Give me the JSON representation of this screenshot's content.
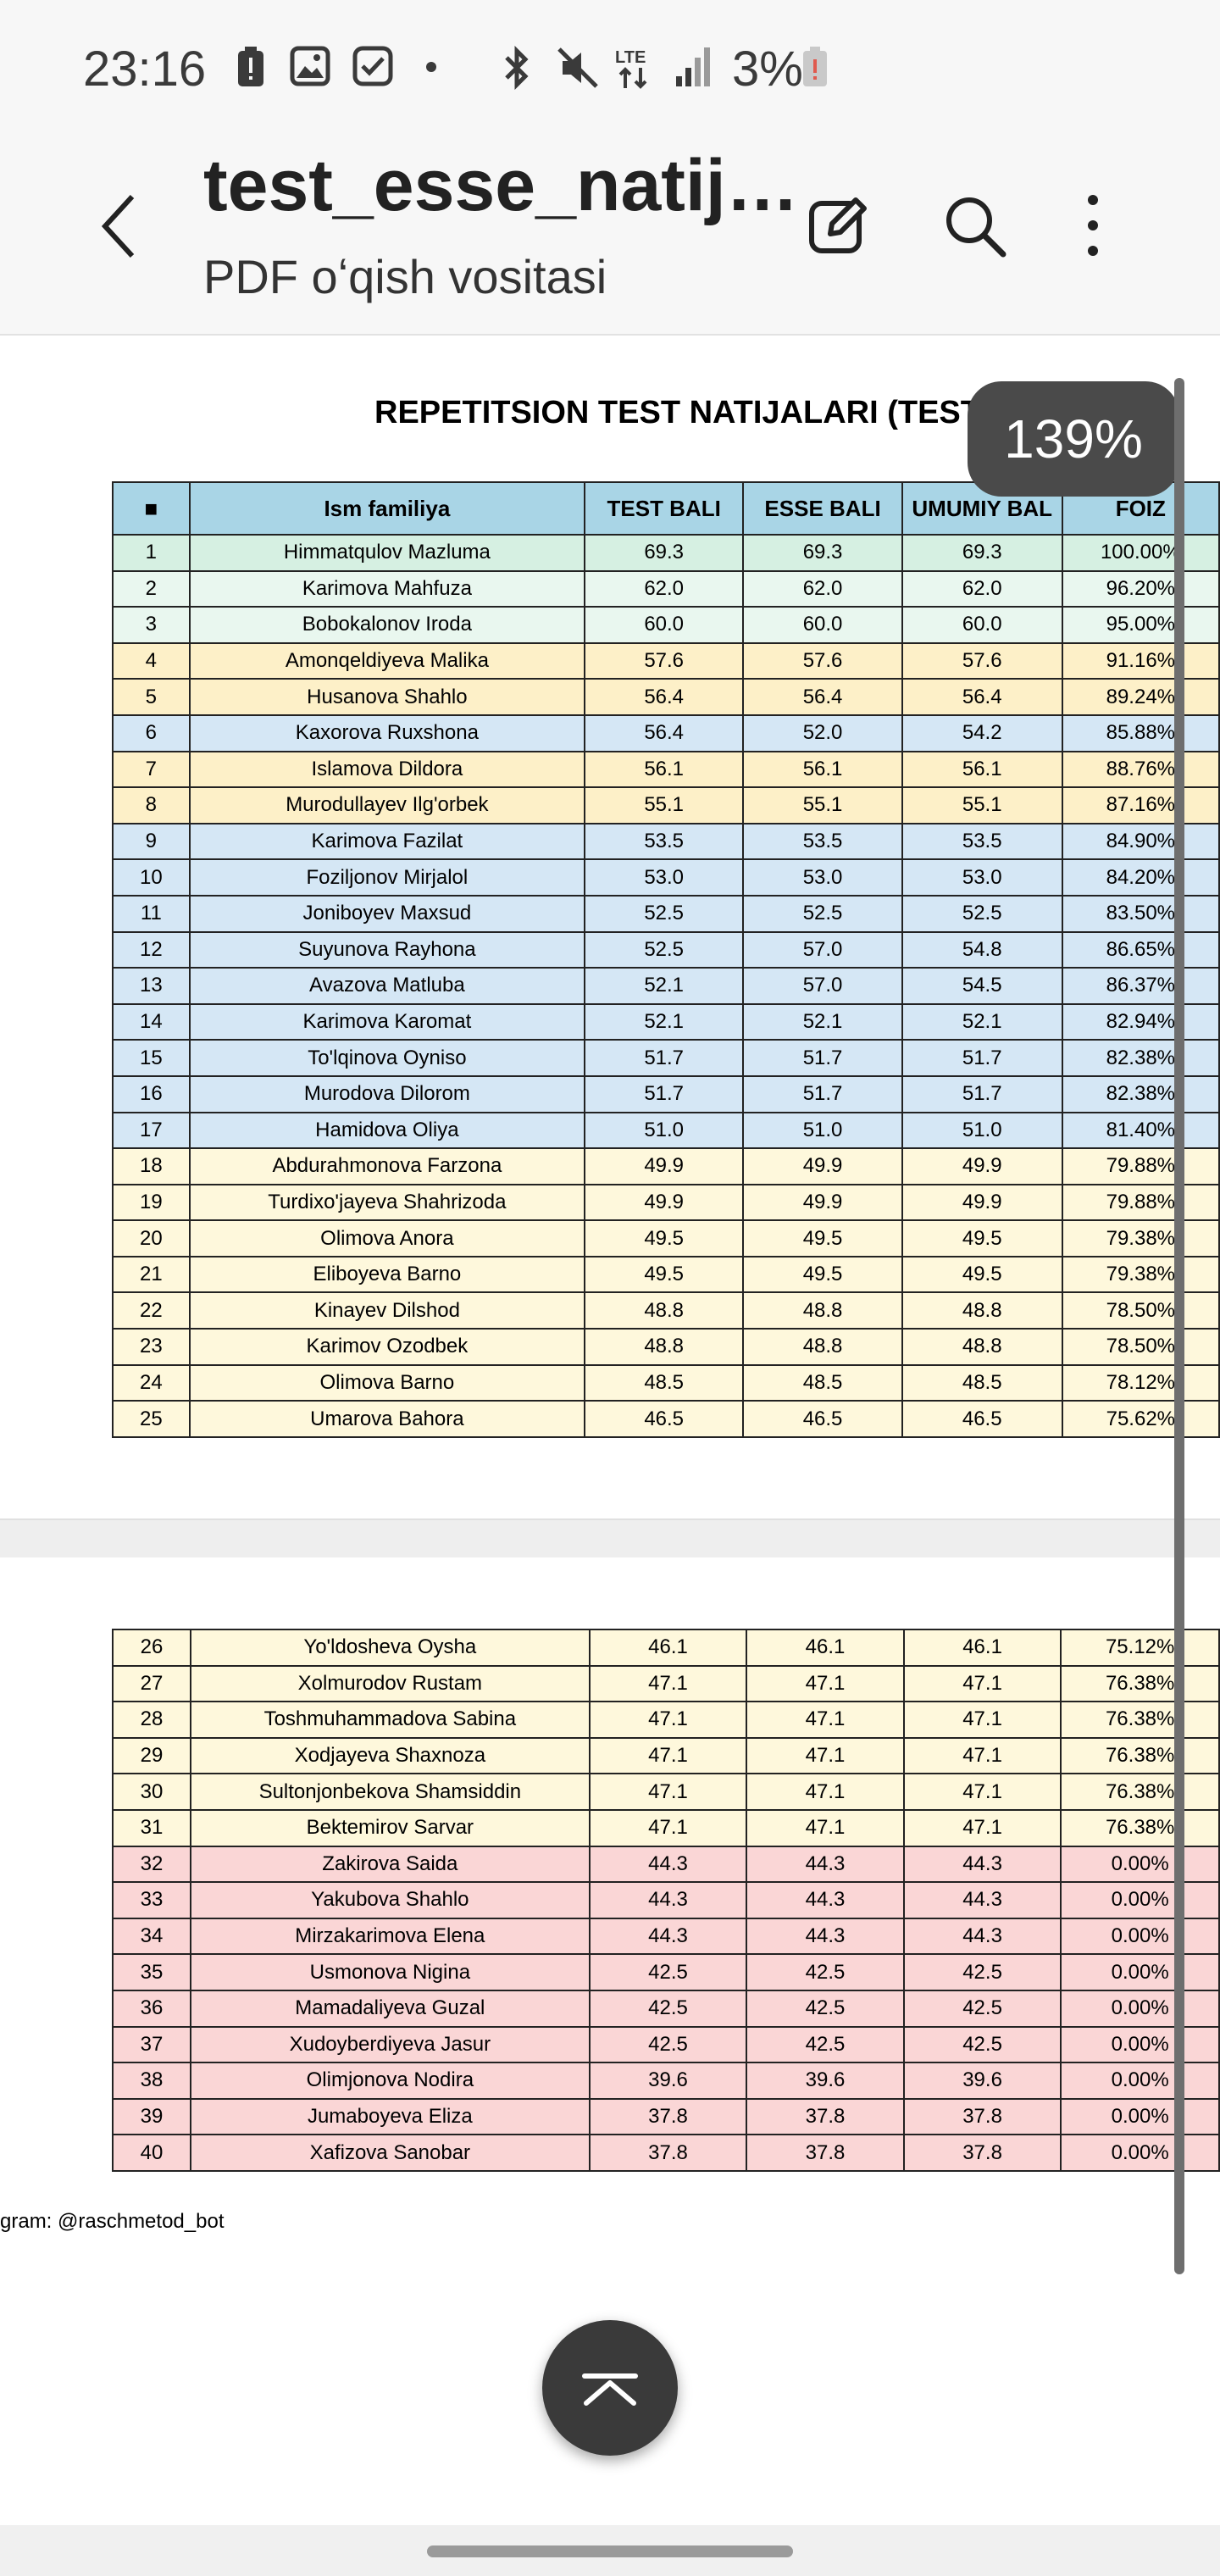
{
  "status_bar": {
    "time": "23:16",
    "battery_percent": "3%",
    "icons": [
      "battery-alert-icon",
      "gallery-icon",
      "checkbox-icon",
      "dot-icon",
      "bluetooth-icon",
      "mute-icon",
      "lte-icon",
      "signal-icon",
      "battery-icon"
    ],
    "network_label": "LTE"
  },
  "app_bar": {
    "title": "test_esse_natij…",
    "subtitle": "PDF oʻqish vositasi",
    "icons": [
      "back-icon",
      "edit-icon",
      "search-icon",
      "more-icon"
    ]
  },
  "zoom_level": "139%",
  "document": {
    "title": "REPETITSION TEST NATIJALARI (TEST+ESSE)",
    "columns": [
      "■",
      "Ism familiya",
      "TEST BALI",
      "ESSE BALI",
      "UMUMIY BAL",
      "FOIZ"
    ],
    "page1_rows": [
      {
        "n": "1",
        "name": "Himmatqulov Mazluma",
        "test": "69.3",
        "esse": "69.3",
        "umumiy": "69.3",
        "foiz": "100.00%",
        "color": "green"
      },
      {
        "n": "2",
        "name": "Karimova Mahfuza",
        "test": "62.0",
        "esse": "62.0",
        "umumiy": "62.0",
        "foiz": "96.20%",
        "color": "mint"
      },
      {
        "n": "3",
        "name": "Bobokalonov Iroda",
        "test": "60.0",
        "esse": "60.0",
        "umumiy": "60.0",
        "foiz": "95.00%",
        "color": "mint"
      },
      {
        "n": "4",
        "name": "Amonqeldiyeva Malika",
        "test": "57.6",
        "esse": "57.6",
        "umumiy": "57.6",
        "foiz": "91.16%",
        "color": "yellow"
      },
      {
        "n": "5",
        "name": "Husanova Shahlo",
        "test": "56.4",
        "esse": "56.4",
        "umumiy": "56.4",
        "foiz": "89.24%",
        "color": "yellow"
      },
      {
        "n": "6",
        "name": "Kaxorova Ruxshona",
        "test": "56.4",
        "esse": "52.0",
        "umumiy": "54.2",
        "foiz": "85.88%",
        "color": "blue"
      },
      {
        "n": "7",
        "name": "Islamova Dildora",
        "test": "56.1",
        "esse": "56.1",
        "umumiy": "56.1",
        "foiz": "88.76%",
        "color": "yellow"
      },
      {
        "n": "8",
        "name": "Murodullayev Ilg'orbek",
        "test": "55.1",
        "esse": "55.1",
        "umumiy": "55.1",
        "foiz": "87.16%",
        "color": "yellow"
      },
      {
        "n": "9",
        "name": "Karimova Fazilat",
        "test": "53.5",
        "esse": "53.5",
        "umumiy": "53.5",
        "foiz": "84.90%",
        "color": "blue"
      },
      {
        "n": "10",
        "name": "Foziljonov Mirjalol",
        "test": "53.0",
        "esse": "53.0",
        "umumiy": "53.0",
        "foiz": "84.20%",
        "color": "blue"
      },
      {
        "n": "11",
        "name": "Joniboyev Maxsud",
        "test": "52.5",
        "esse": "52.5",
        "umumiy": "52.5",
        "foiz": "83.50%",
        "color": "blue"
      },
      {
        "n": "12",
        "name": "Suyunova Rayhona",
        "test": "52.5",
        "esse": "57.0",
        "umumiy": "54.8",
        "foiz": "86.65%",
        "color": "blue"
      },
      {
        "n": "13",
        "name": "Avazova Matluba",
        "test": "52.1",
        "esse": "57.0",
        "umumiy": "54.5",
        "foiz": "86.37%",
        "color": "blue"
      },
      {
        "n": "14",
        "name": "Karimova Karomat",
        "test": "52.1",
        "esse": "52.1",
        "umumiy": "52.1",
        "foiz": "82.94%",
        "color": "blue"
      },
      {
        "n": "15",
        "name": "To'lqinova Oyniso",
        "test": "51.7",
        "esse": "51.7",
        "umumiy": "51.7",
        "foiz": "82.38%",
        "color": "blue"
      },
      {
        "n": "16",
        "name": "Murodova Dilorom",
        "test": "51.7",
        "esse": "51.7",
        "umumiy": "51.7",
        "foiz": "82.38%",
        "color": "blue"
      },
      {
        "n": "17",
        "name": "Hamidova Oliya",
        "test": "51.0",
        "esse": "51.0",
        "umumiy": "51.0",
        "foiz": "81.40%",
        "color": "blue"
      },
      {
        "n": "18",
        "name": "Abdurahmonova Farzona",
        "test": "49.9",
        "esse": "49.9",
        "umumiy": "49.9",
        "foiz": "79.88%",
        "color": "cream"
      },
      {
        "n": "19",
        "name": "Turdixo'jayeva Shahrizoda",
        "test": "49.9",
        "esse": "49.9",
        "umumiy": "49.9",
        "foiz": "79.88%",
        "color": "cream"
      },
      {
        "n": "20",
        "name": "Olimova Anora",
        "test": "49.5",
        "esse": "49.5",
        "umumiy": "49.5",
        "foiz": "79.38%",
        "color": "cream"
      },
      {
        "n": "21",
        "name": "Eliboyeva Barno",
        "test": "49.5",
        "esse": "49.5",
        "umumiy": "49.5",
        "foiz": "79.38%",
        "color": "cream"
      },
      {
        "n": "22",
        "name": "Kinayev Dilshod",
        "test": "48.8",
        "esse": "48.8",
        "umumiy": "48.8",
        "foiz": "78.50%",
        "color": "cream"
      },
      {
        "n": "23",
        "name": "Karimov Ozodbek",
        "test": "48.8",
        "esse": "48.8",
        "umumiy": "48.8",
        "foiz": "78.50%",
        "color": "cream"
      },
      {
        "n": "24",
        "name": "Olimova Barno",
        "test": "48.5",
        "esse": "48.5",
        "umumiy": "48.5",
        "foiz": "78.12%",
        "color": "cream"
      },
      {
        "n": "25",
        "name": "Umarova Bahora",
        "test": "46.5",
        "esse": "46.5",
        "umumiy": "46.5",
        "foiz": "75.62%",
        "color": "cream"
      }
    ],
    "page2_rows": [
      {
        "n": "26",
        "name": "Yo'ldosheva Oysha",
        "test": "46.1",
        "esse": "46.1",
        "umumiy": "46.1",
        "foiz": "75.12%",
        "color": "cream"
      },
      {
        "n": "27",
        "name": "Xolmurodov Rustam",
        "test": "47.1",
        "esse": "47.1",
        "umumiy": "47.1",
        "foiz": "76.38%",
        "color": "cream"
      },
      {
        "n": "28",
        "name": "Toshmuhammadova Sabina",
        "test": "47.1",
        "esse": "47.1",
        "umumiy": "47.1",
        "foiz": "76.38%",
        "color": "cream"
      },
      {
        "n": "29",
        "name": "Xodjayeva Shaxnoza",
        "test": "47.1",
        "esse": "47.1",
        "umumiy": "47.1",
        "foiz": "76.38%",
        "color": "cream"
      },
      {
        "n": "30",
        "name": "Sultonjonbekova Shamsiddin",
        "test": "47.1",
        "esse": "47.1",
        "umumiy": "47.1",
        "foiz": "76.38%",
        "color": "cream"
      },
      {
        "n": "31",
        "name": "Bektemirov Sarvar",
        "test": "47.1",
        "esse": "47.1",
        "umumiy": "47.1",
        "foiz": "76.38%",
        "color": "cream"
      },
      {
        "n": "32",
        "name": "Zakirova Saida",
        "test": "44.3",
        "esse": "44.3",
        "umumiy": "44.3",
        "foiz": "0.00%",
        "color": "pink"
      },
      {
        "n": "33",
        "name": "Yakubova Shahlo",
        "test": "44.3",
        "esse": "44.3",
        "umumiy": "44.3",
        "foiz": "0.00%",
        "color": "pink"
      },
      {
        "n": "34",
        "name": "Mirzakarimova Elena",
        "test": "44.3",
        "esse": "44.3",
        "umumiy": "44.3",
        "foiz": "0.00%",
        "color": "pink"
      },
      {
        "n": "35",
        "name": "Usmonova Nigina",
        "test": "42.5",
        "esse": "42.5",
        "umumiy": "42.5",
        "foiz": "0.00%",
        "color": "pink"
      },
      {
        "n": "36",
        "name": "Mamadaliyeva Guzal",
        "test": "42.5",
        "esse": "42.5",
        "umumiy": "42.5",
        "foiz": "0.00%",
        "color": "pink"
      },
      {
        "n": "37",
        "name": "Xudoyberdiyeva Jasur",
        "test": "42.5",
        "esse": "42.5",
        "umumiy": "42.5",
        "foiz": "0.00%",
        "color": "pink"
      },
      {
        "n": "38",
        "name": "Olimjonova Nodira",
        "test": "39.6",
        "esse": "39.6",
        "umumiy": "39.6",
        "foiz": "0.00%",
        "color": "pink"
      },
      {
        "n": "39",
        "name": "Jumaboyeva Eliza",
        "test": "37.8",
        "esse": "37.8",
        "umumiy": "37.8",
        "foiz": "0.00%",
        "color": "pink"
      },
      {
        "n": "40",
        "name": "Xafizova Sanobar",
        "test": "37.8",
        "esse": "37.8",
        "umumiy": "37.8",
        "foiz": "0.00%",
        "color": "pink"
      }
    ],
    "footer_note": "gram: @raschmetod_bot"
  },
  "colors": {
    "header": "#a9d5e6",
    "green": "#d6f0e2",
    "mint": "#e9f7ef",
    "yellow": "#fdf0c8",
    "blue": "#d5e7f5",
    "cream": "#fef8dc",
    "pink": "#fad6d6"
  },
  "scroll_top_icon": "chevron-up-bar-icon"
}
